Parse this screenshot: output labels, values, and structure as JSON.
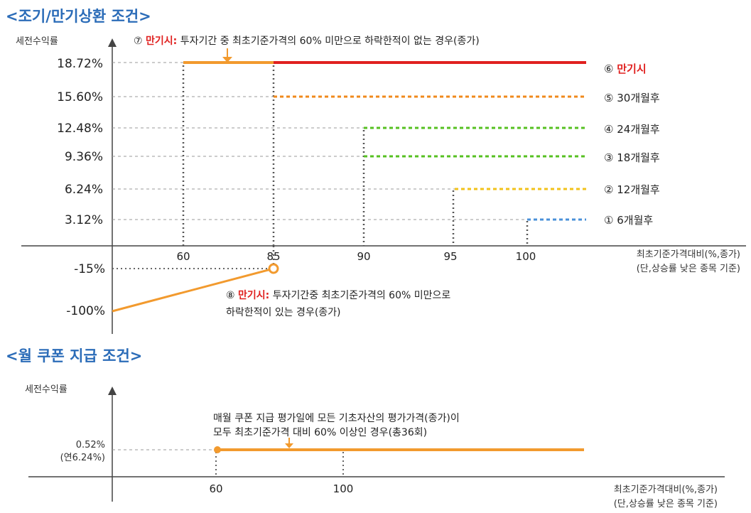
{
  "chart_data": [
    {
      "type": "line",
      "title": "<조기/만기상환 조건>",
      "ylabel": "세전수익률",
      "xlabel": "최초기준가격대비(%,종가)",
      "xlabel_note": "(단,상승률 낮은 종목 기준)",
      "y_ticks_upper": [
        "18.72%",
        "15.60%",
        "12.48%",
        "9.36%",
        "6.24%",
        "3.12%"
      ],
      "y_ticks_lower": [
        "-15%",
        "-100%"
      ],
      "x_ticks": [
        "60",
        "85",
        "90",
        "95",
        "100"
      ],
      "series": [
        {
          "name": "① 6개월후",
          "color": "#4a90d9",
          "dashed": true,
          "x": [
            100,
            117
          ],
          "y": [
            3.12,
            3.12
          ]
        },
        {
          "name": "② 12개월후",
          "color": "#f2c21a",
          "dashed": true,
          "x": [
            95,
            117
          ],
          "y": [
            6.24,
            6.24
          ]
        },
        {
          "name": "③ 18개월후",
          "color": "#56c021",
          "dashed": true,
          "x": [
            90,
            117
          ],
          "y": [
            9.36,
            9.36
          ]
        },
        {
          "name": "④ 24개월후",
          "color": "#56c021",
          "dashed": true,
          "x": [
            90,
            117
          ],
          "y": [
            12.48,
            12.48
          ]
        },
        {
          "name": "⑤ 30개월후",
          "color": "#f08a1c",
          "dashed": true,
          "x": [
            85,
            117
          ],
          "y": [
            15.6,
            15.6
          ]
        },
        {
          "name": "⑥ 만기시",
          "color": "#e0201f",
          "dashed": false,
          "x": [
            85,
            117
          ],
          "y": [
            18.72,
            18.72
          ]
        },
        {
          "name": "⑦ 만기시",
          "color": "#f29a2e",
          "dashed": false,
          "x": [
            60,
            85
          ],
          "y": [
            18.72,
            18.72
          ]
        },
        {
          "name": "⑧ 만기시",
          "color": "#f29a2e",
          "dashed": false,
          "x": [
            40,
            85
          ],
          "y": [
            -100,
            -15
          ]
        }
      ],
      "legend": [
        {
          "num": "⑥",
          "text": "만기시",
          "red": true
        },
        {
          "num": "⑤",
          "text": "30개월후",
          "red": false
        },
        {
          "num": "④",
          "text": "24개월후",
          "red": false
        },
        {
          "num": "③",
          "text": "18개월후",
          "red": false
        },
        {
          "num": "②",
          "text": "12개월후",
          "red": false
        },
        {
          "num": "①",
          "text": "6개월후",
          "red": false
        }
      ],
      "annotations": {
        "note7_prefix": "⑦",
        "note7_red": "만기시:",
        "note7_text": "투자기간 중 최초기준가격의 60% 미만으로 하락한적이 없는 경우(종가)",
        "note8_prefix": "⑧",
        "note8_red": "만기시:",
        "note8_line1": "투자기간중 최초기준가격의 60% 미만으로",
        "note8_line2": "하락한적이 있는 경우(종가)"
      }
    },
    {
      "type": "line",
      "title": "<월 쿠폰 지급 조건>",
      "ylabel": "세전수익률",
      "xlabel": "최초기준가격대비(%,종가)",
      "xlabel_note": "(단,상승률 낮은 종목 기준)",
      "y_tick_line1": "0.52%",
      "y_tick_line2": "(연6.24%)",
      "x_ticks": [
        "60",
        "100"
      ],
      "series": [
        {
          "name": "",
          "color": "#f29a2e",
          "x": [
            60,
            160
          ],
          "y": [
            0.52,
            0.52
          ]
        }
      ],
      "annotations": {
        "note_line1": "매월 쿠폰 지급 평가일에 모든 기초자산의 평가가격(종가)이",
        "note_line2": "모두 최초기준가격 대비 60% 이상인 경우(총36회)"
      }
    }
  ]
}
